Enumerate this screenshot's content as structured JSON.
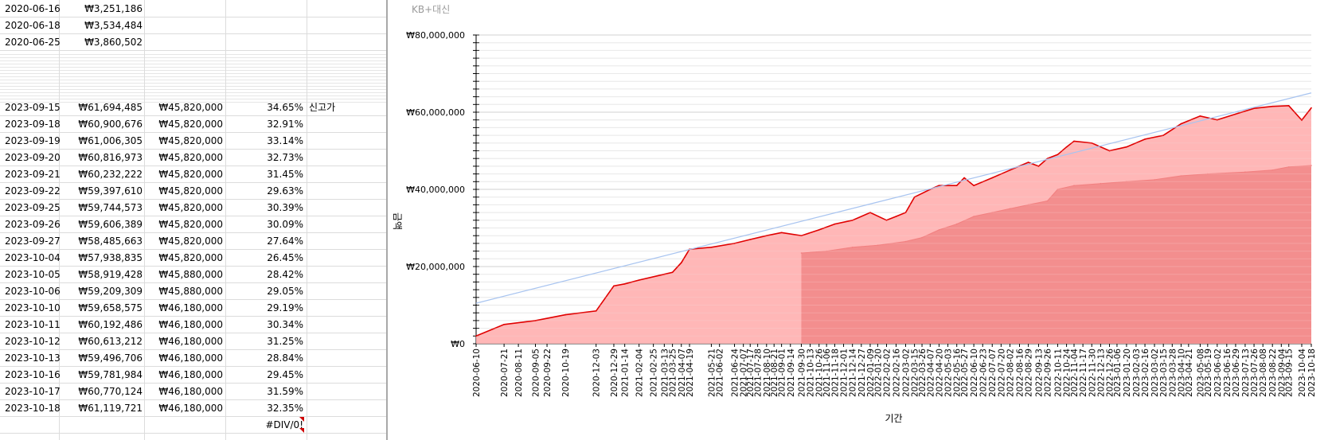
{
  "sheet": {
    "rows": [
      {
        "date": "2020-06-16",
        "value": "₩3,251,186",
        "principal": "",
        "rate": "",
        "note": ""
      },
      {
        "date": "2020-06-18",
        "value": "₩3,534,484",
        "principal": "",
        "rate": "",
        "note": ""
      },
      {
        "date": "2020-06-25",
        "value": "₩3,860,502",
        "principal": "",
        "rate": "",
        "note": ""
      },
      {
        "date": "2023-09-15",
        "value": "₩61,694,485",
        "principal": "₩45,820,000",
        "rate": "34.65%",
        "note": "신고가"
      },
      {
        "date": "2023-09-18",
        "value": "₩60,900,676",
        "principal": "₩45,820,000",
        "rate": "32.91%",
        "note": ""
      },
      {
        "date": "2023-09-19",
        "value": "₩61,006,305",
        "principal": "₩45,820,000",
        "rate": "33.14%",
        "note": ""
      },
      {
        "date": "2023-09-20",
        "value": "₩60,816,973",
        "principal": "₩45,820,000",
        "rate": "32.73%",
        "note": ""
      },
      {
        "date": "2023-09-21",
        "value": "₩60,232,222",
        "principal": "₩45,820,000",
        "rate": "31.45%",
        "note": ""
      },
      {
        "date": "2023-09-22",
        "value": "₩59,397,610",
        "principal": "₩45,820,000",
        "rate": "29.63%",
        "note": ""
      },
      {
        "date": "2023-09-25",
        "value": "₩59,744,573",
        "principal": "₩45,820,000",
        "rate": "30.39%",
        "note": ""
      },
      {
        "date": "2023-09-26",
        "value": "₩59,606,389",
        "principal": "₩45,820,000",
        "rate": "30.09%",
        "note": ""
      },
      {
        "date": "2023-09-27",
        "value": "₩58,485,663",
        "principal": "₩45,820,000",
        "rate": "27.64%",
        "note": ""
      },
      {
        "date": "2023-10-04",
        "value": "₩57,938,835",
        "principal": "₩45,820,000",
        "rate": "26.45%",
        "note": ""
      },
      {
        "date": "2023-10-05",
        "value": "₩58,919,428",
        "principal": "₩45,880,000",
        "rate": "28.42%",
        "note": ""
      },
      {
        "date": "2023-10-06",
        "value": "₩59,209,309",
        "principal": "₩45,880,000",
        "rate": "29.05%",
        "note": ""
      },
      {
        "date": "2023-10-10",
        "value": "₩59,658,575",
        "principal": "₩46,180,000",
        "rate": "29.19%",
        "note": ""
      },
      {
        "date": "2023-10-11",
        "value": "₩60,192,486",
        "principal": "₩46,180,000",
        "rate": "30.34%",
        "note": ""
      },
      {
        "date": "2023-10-12",
        "value": "₩60,613,212",
        "principal": "₩46,180,000",
        "rate": "31.25%",
        "note": ""
      },
      {
        "date": "2023-10-13",
        "value": "₩59,496,706",
        "principal": "₩46,180,000",
        "rate": "28.84%",
        "note": ""
      },
      {
        "date": "2023-10-16",
        "value": "₩59,781,984",
        "principal": "₩46,180,000",
        "rate": "29.45%",
        "note": ""
      },
      {
        "date": "2023-10-17",
        "value": "₩60,770,124",
        "principal": "₩46,180,000",
        "rate": "31.59%",
        "note": ""
      },
      {
        "date": "2023-10-18",
        "value": "₩61,119,721",
        "principal": "₩46,180,000",
        "rate": "32.35%",
        "note": ""
      },
      {
        "date": "",
        "value": "",
        "principal": "",
        "rate": "#DIV/0!",
        "note": ""
      }
    ]
  },
  "chart_data": {
    "type": "area",
    "title": "KB+대신",
    "xlabel": "기간",
    "ylabel": "금액",
    "ylim": [
      0,
      80000000
    ],
    "yticks": [
      "₩0",
      "₩20,000,000",
      "₩40,000,000",
      "₩60,000,000",
      "₩80,000,000"
    ],
    "grid": true,
    "x_tick_labels": [
      "2020-06-10",
      "2020-07-21",
      "2020-08-11",
      "2020-09-05",
      "2020-09-22",
      "2020-10-19",
      "2020-12-03",
      "2020-12-29",
      "2021-01-14",
      "2021-02-04",
      "2021-02-25",
      "2021-03-13",
      "2021-03-25",
      "2021-04-07",
      "2021-04-19",
      "2021-05-21",
      "2021-06-02",
      "2021-06-24",
      "2021-07-07",
      "2021-07-17",
      "2021-07-28",
      "2021-08-10",
      "2021-08-21",
      "2021-09-01",
      "2021-09-14",
      "2021-09-30",
      "2021-10-13",
      "2021-10-26",
      "2021-11-06",
      "2021-11-18",
      "2021-12-01",
      "2021-12-14",
      "2021-12-27",
      "2022-01-09",
      "2022-01-20",
      "2022-02-02",
      "2022-02-16",
      "2022-03-02",
      "2022-03-15",
      "2022-03-26",
      "2022-04-07",
      "2022-04-20",
      "2022-05-03",
      "2022-05-16",
      "2022-05-27",
      "2022-06-10",
      "2022-06-23",
      "2022-07-07",
      "2022-07-20",
      "2022-08-02",
      "2022-08-16",
      "2022-08-29",
      "2022-09-13",
      "2022-09-26",
      "2022-10-11",
      "2022-10-24",
      "2022-11-04",
      "2022-11-17",
      "2022-11-30",
      "2022-12-13",
      "2022-12-26",
      "2023-01-06",
      "2023-01-20",
      "2023-02-03",
      "2023-02-16",
      "2023-03-02",
      "2023-03-15",
      "2023-03-28",
      "2023-04-10",
      "2023-04-21",
      "2023-05-08",
      "2023-05-19",
      "2023-06-02",
      "2023-06-16",
      "2023-06-29",
      "2023-07-13",
      "2023-07-26",
      "2023-08-08",
      "2023-08-22",
      "2023-09-04",
      "2023-09-15",
      "2023-10-04",
      "2023-10-18"
    ],
    "series": [
      {
        "color": "#e00000",
        "fill": "#ffaaaa",
        "points": [
          [
            "2020-06-10",
            2000000
          ],
          [
            "2020-07-21",
            5000000
          ],
          [
            "2020-09-05",
            6000000
          ],
          [
            "2020-10-19",
            7500000
          ],
          [
            "2020-12-03",
            8500000
          ],
          [
            "2020-12-29",
            15000000
          ],
          [
            "2021-01-14",
            15500000
          ],
          [
            "2021-02-04",
            16500000
          ],
          [
            "2021-03-13",
            18000000
          ],
          [
            "2021-03-25",
            18500000
          ],
          [
            "2021-04-07",
            21000000
          ],
          [
            "2021-04-19",
            24500000
          ],
          [
            "2021-05-21",
            25000000
          ],
          [
            "2021-06-24",
            26000000
          ],
          [
            "2021-07-17",
            27000000
          ],
          [
            "2021-08-10",
            28000000
          ],
          [
            "2021-09-01",
            28800000
          ],
          [
            "2021-09-30",
            28000000
          ],
          [
            "2021-10-26",
            29500000
          ],
          [
            "2021-11-18",
            31000000
          ],
          [
            "2021-12-14",
            32000000
          ],
          [
            "2022-01-09",
            34000000
          ],
          [
            "2022-02-02",
            32000000
          ],
          [
            "2022-02-16",
            33000000
          ],
          [
            "2022-03-02",
            34000000
          ],
          [
            "2022-03-15",
            38000000
          ],
          [
            "2022-04-07",
            40000000
          ],
          [
            "2022-04-20",
            41000000
          ],
          [
            "2022-05-16",
            41000000
          ],
          [
            "2022-05-27",
            43000000
          ],
          [
            "2022-06-10",
            41000000
          ],
          [
            "2022-07-07",
            43000000
          ],
          [
            "2022-08-02",
            45000000
          ],
          [
            "2022-08-29",
            47000000
          ],
          [
            "2022-09-13",
            46000000
          ],
          [
            "2022-09-26",
            48000000
          ],
          [
            "2022-10-11",
            49000000
          ],
          [
            "2022-10-24",
            51000000
          ],
          [
            "2022-11-04",
            52500000
          ],
          [
            "2022-11-30",
            52000000
          ],
          [
            "2022-12-26",
            50000000
          ],
          [
            "2023-01-20",
            51000000
          ],
          [
            "2023-02-16",
            53000000
          ],
          [
            "2023-03-15",
            54000000
          ],
          [
            "2023-04-10",
            57000000
          ],
          [
            "2023-05-08",
            59000000
          ],
          [
            "2023-06-02",
            58000000
          ],
          [
            "2023-06-29",
            59500000
          ],
          [
            "2023-07-26",
            61000000
          ],
          [
            "2023-08-22",
            61500000
          ],
          [
            "2023-09-15",
            61694485
          ],
          [
            "2023-10-04",
            57938835
          ],
          [
            "2023-10-18",
            61119721
          ]
        ]
      },
      {
        "color": "#f28080",
        "fill": "#f28b8b",
        "points": [
          [
            "2021-09-30",
            23500000
          ],
          [
            "2021-11-06",
            24000000
          ],
          [
            "2021-12-14",
            25000000
          ],
          [
            "2022-01-20",
            25500000
          ],
          [
            "2022-03-02",
            26500000
          ],
          [
            "2022-03-26",
            27500000
          ],
          [
            "2022-04-20",
            29500000
          ],
          [
            "2022-05-16",
            31000000
          ],
          [
            "2022-06-10",
            33000000
          ],
          [
            "2022-07-07",
            34000000
          ],
          [
            "2022-08-02",
            35000000
          ],
          [
            "2022-08-29",
            36000000
          ],
          [
            "2022-09-26",
            37000000
          ],
          [
            "2022-10-11",
            40000000
          ],
          [
            "2022-11-04",
            41000000
          ],
          [
            "2022-12-13",
            41500000
          ],
          [
            "2023-01-20",
            42000000
          ],
          [
            "2023-03-02",
            42500000
          ],
          [
            "2023-04-10",
            43500000
          ],
          [
            "2023-05-19",
            44000000
          ],
          [
            "2023-07-13",
            44500000
          ],
          [
            "2023-08-22",
            45000000
          ],
          [
            "2023-09-15",
            45820000
          ],
          [
            "2023-10-18",
            46180000
          ]
        ]
      }
    ],
    "trendline": {
      "color": "#a8c4f0",
      "start": [
        "2020-06-10",
        10500000
      ],
      "end": [
        "2023-10-18",
        65000000
      ]
    }
  }
}
